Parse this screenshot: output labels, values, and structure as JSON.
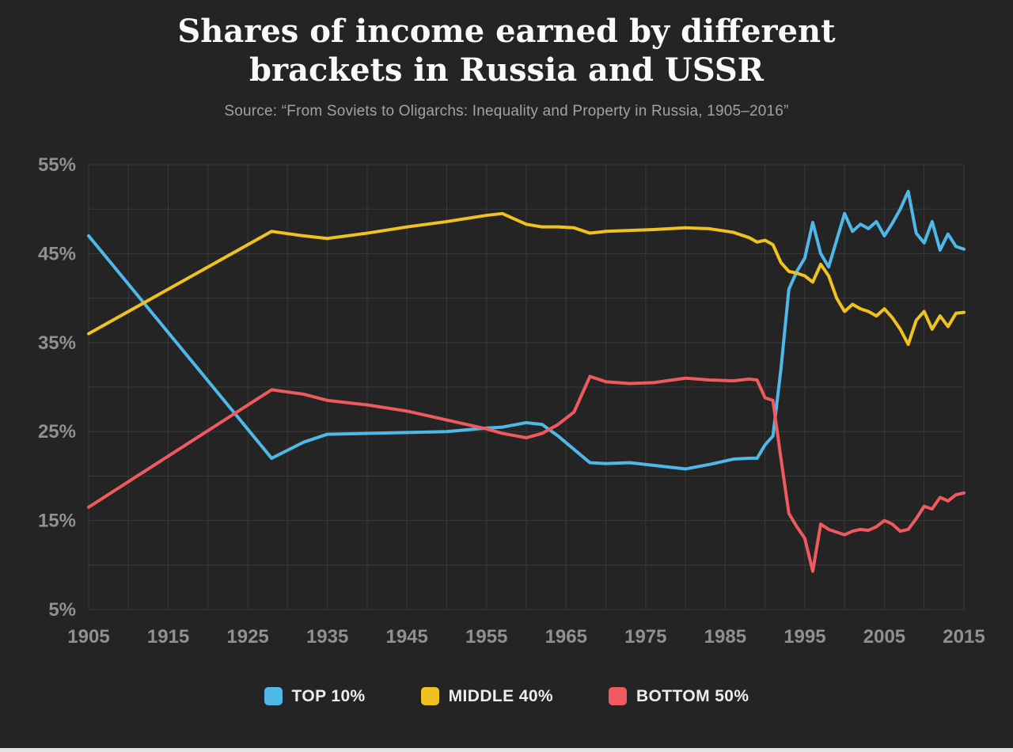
{
  "chart_data": {
    "type": "line",
    "title": "Shares of income earned by different brackets in Russia and USSR",
    "title_lines": [
      "Shares of income earned by different",
      "brackets in Russia and USSR"
    ],
    "source": "Source: “From Soviets to Oligarchs: Inequality and Property in Russia, 1905–2016”",
    "xlabel": "",
    "ylabel": "",
    "xlim": [
      1905,
      2015
    ],
    "ylim": [
      5,
      55
    ],
    "x_ticks": [
      1905,
      1915,
      1925,
      1935,
      1945,
      1955,
      1965,
      1975,
      1985,
      1995,
      2005,
      2015
    ],
    "y_ticks": [
      5,
      15,
      25,
      35,
      45,
      55
    ],
    "grid": true,
    "grid_x_step": 5,
    "grid_y_step": 5,
    "legend_position": "bottom",
    "style": {
      "background": "#242424",
      "grid_color": "#3a3a3a",
      "axis_label_color": "#909090",
      "title_color": "#fafafa",
      "source_color": "#a2a2a2",
      "line_width": 4
    },
    "x": [
      1905,
      1928,
      1932,
      1935,
      1940,
      1945,
      1950,
      1955,
      1957,
      1960,
      1962,
      1964,
      1966,
      1968,
      1970,
      1973,
      1976,
      1980,
      1983,
      1986,
      1988,
      1989,
      1990,
      1991,
      1992,
      1993,
      1994,
      1995,
      1996,
      1997,
      1998,
      1999,
      2000,
      2001,
      2002,
      2003,
      2004,
      2005,
      2006,
      2007,
      2008,
      2009,
      2010,
      2011,
      2012,
      2013,
      2014,
      2015
    ],
    "series": [
      {
        "id": "top10",
        "name": "TOP 10%",
        "color": "#4eb8e9",
        "values": [
          47.0,
          22.0,
          23.8,
          24.7,
          24.8,
          24.9,
          25.0,
          25.4,
          25.5,
          26.0,
          25.8,
          24.5,
          23.0,
          21.5,
          21.4,
          21.5,
          21.2,
          20.8,
          21.3,
          21.9,
          22.0,
          22.0,
          23.5,
          24.5,
          32.0,
          41.0,
          43.0,
          44.5,
          48.5,
          45.0,
          43.5,
          46.5,
          49.5,
          47.5,
          48.3,
          47.8,
          48.6,
          47.0,
          48.4,
          50.0,
          52.0,
          47.3,
          46.2,
          48.6,
          45.4,
          47.2,
          45.8,
          45.5
        ]
      },
      {
        "id": "middle40",
        "name": "MIDDLE 40%",
        "color": "#f0c220",
        "values": [
          36.0,
          47.5,
          47.0,
          46.7,
          47.3,
          48.0,
          48.6,
          49.3,
          49.5,
          48.3,
          48.0,
          48.0,
          47.9,
          47.3,
          47.5,
          47.6,
          47.7,
          47.9,
          47.8,
          47.4,
          46.8,
          46.3,
          46.5,
          46.0,
          44.0,
          43.0,
          42.8,
          42.5,
          41.8,
          43.8,
          42.5,
          40.0,
          38.5,
          39.3,
          38.8,
          38.5,
          38.0,
          38.8,
          37.8,
          36.5,
          34.8,
          37.5,
          38.5,
          36.5,
          38.0,
          36.8,
          38.3,
          38.4
        ]
      },
      {
        "id": "bottom50",
        "name": "BOTTOM 50%",
        "color": "#ee5a5e",
        "values": [
          16.5,
          29.7,
          29.2,
          28.5,
          28.0,
          27.3,
          26.3,
          25.3,
          24.8,
          24.3,
          24.8,
          25.8,
          27.2,
          31.2,
          30.6,
          30.4,
          30.5,
          31.0,
          30.8,
          30.7,
          30.9,
          30.8,
          28.8,
          28.5,
          22.0,
          15.8,
          14.3,
          13.0,
          9.3,
          14.6,
          14.0,
          13.7,
          13.4,
          13.8,
          14.0,
          13.9,
          14.3,
          15.0,
          14.6,
          13.8,
          14.0,
          15.2,
          16.6,
          16.3,
          17.6,
          17.2,
          17.9,
          18.1
        ]
      }
    ]
  },
  "legend": [
    {
      "label": "TOP 10%"
    },
    {
      "label": "MIDDLE 40%"
    },
    {
      "label": "BOTTOM 50%"
    }
  ]
}
